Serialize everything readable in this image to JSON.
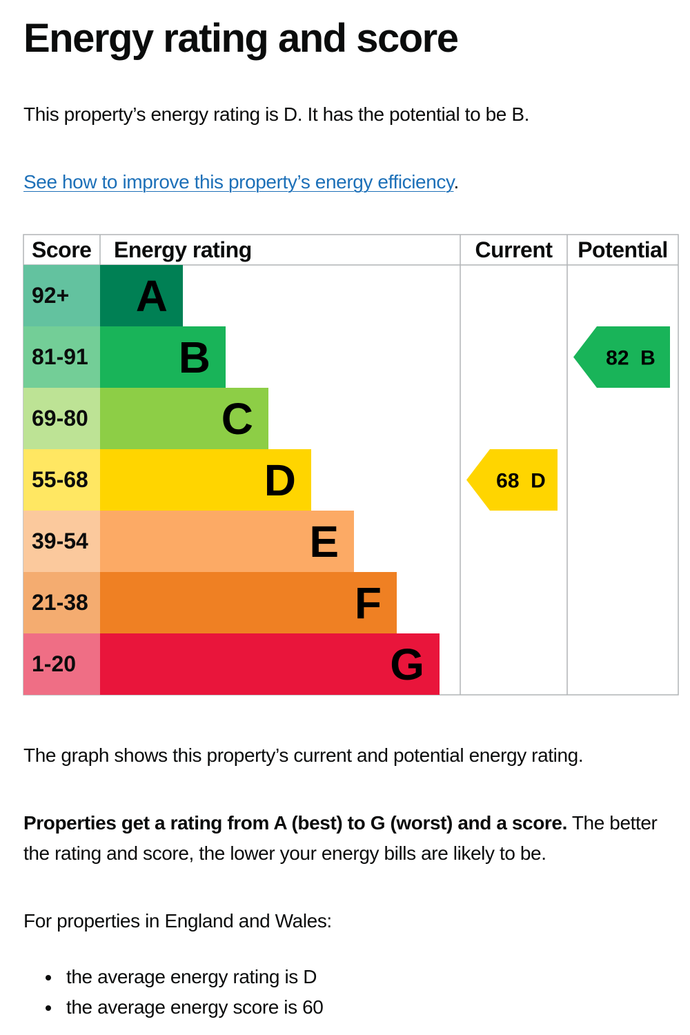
{
  "page": {
    "title": "Energy rating and score",
    "intro": "This property’s energy rating is D. It has the potential to be B.",
    "link_text": "See how to improve this property’s energy efficiency",
    "link_suffix": ".",
    "graph_caption": "The graph shows this property’s current and potential energy rating.",
    "bold_text": "Properties get a rating from A (best) to G (worst) and a score.",
    "rest_line1": " The better",
    "rest_line2": "the rating and score, the lower your energy bills are likely to be.",
    "region_text": "For properties in England and Wales:",
    "bullets": [
      "the average energy rating is D",
      "the average energy score is 60"
    ]
  },
  "chart_data": {
    "type": "bar",
    "headers": {
      "score": "Score",
      "rating": "Energy rating",
      "current": "Current",
      "potential": "Potential"
    },
    "bands": [
      {
        "letter": "A",
        "score": "92+",
        "color": "#008054",
        "score_bg": "#63c29f"
      },
      {
        "letter": "B",
        "score": "81-91",
        "color": "#19b459",
        "score_bg": "#73ce97"
      },
      {
        "letter": "C",
        "score": "69-80",
        "color": "#8dce46",
        "score_bg": "#bde395"
      },
      {
        "letter": "D",
        "score": "55-68",
        "color": "#ffd500",
        "score_bg": "#ffe762"
      },
      {
        "letter": "E",
        "score": "39-54",
        "color": "#fcaa65",
        "score_bg": "#fbc99d"
      },
      {
        "letter": "F",
        "score": "21-38",
        "color": "#ef8023",
        "score_bg": "#f4ac70"
      },
      {
        "letter": "G",
        "score": "1-20",
        "color": "#e9153b",
        "score_bg": "#ef6e85"
      }
    ],
    "current": {
      "score": 68,
      "letter": "D",
      "label": "68  D"
    },
    "potential": {
      "score": 82,
      "letter": "B",
      "label": "82  B"
    }
  }
}
